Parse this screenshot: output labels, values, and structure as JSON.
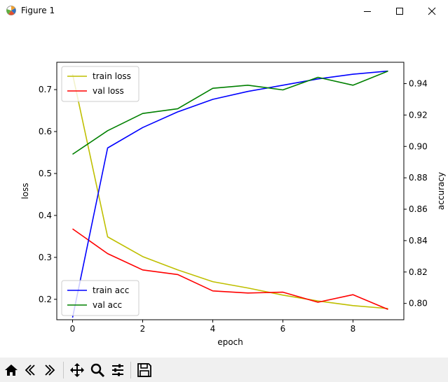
{
  "window": {
    "title": "Figure 1",
    "buttons": [
      "minimize",
      "maximize",
      "close"
    ]
  },
  "toolbar": {
    "tools": [
      {
        "name": "home-icon",
        "tooltip": "Home"
      },
      {
        "name": "back-icon",
        "tooltip": "Back"
      },
      {
        "name": "forward-icon",
        "tooltip": "Forward"
      },
      {
        "name": "pan-icon",
        "tooltip": "Pan"
      },
      {
        "name": "zoom-icon",
        "tooltip": "Zoom"
      },
      {
        "name": "configure-subplots-icon",
        "tooltip": "Subplots"
      },
      {
        "name": "save-icon",
        "tooltip": "Save"
      }
    ]
  },
  "chart_data": {
    "type": "line",
    "xlabel": "epoch",
    "ylabel_left": "loss",
    "ylabel_right": "accuracy",
    "x": [
      0,
      1,
      2,
      3,
      4,
      5,
      6,
      7,
      8,
      9
    ],
    "xlim": [
      -0.45,
      9.45
    ],
    "xticks": [
      "0",
      "2",
      "4",
      "6",
      "8"
    ],
    "ylim_left": [
      0.1513,
      0.7652
    ],
    "yticks_left": [
      "0.2",
      "0.3",
      "0.4",
      "0.5",
      "0.6",
      "0.7"
    ],
    "ylim_right": [
      0.7896,
      0.9536
    ],
    "yticks_right": [
      "0.80",
      "0.82",
      "0.84",
      "0.86",
      "0.88",
      "0.90",
      "0.92",
      "0.94"
    ],
    "grid": false,
    "left_series": [
      {
        "name": "train loss",
        "color": "#bfbf00",
        "values": [
          0.737,
          0.349,
          0.302,
          0.27,
          0.242,
          0.227,
          0.21,
          0.196,
          0.185,
          0.178
        ]
      },
      {
        "name": "val loss",
        "color": "#ff0000",
        "values": [
          0.368,
          0.309,
          0.27,
          0.259,
          0.22,
          0.215,
          0.217,
          0.193,
          0.211,
          0.176
        ]
      }
    ],
    "right_series": [
      {
        "name": "train acc",
        "color": "#0000ff",
        "values": [
          0.791,
          0.899,
          0.912,
          0.922,
          0.93,
          0.935,
          0.939,
          0.943,
          0.946,
          0.948
        ]
      },
      {
        "name": "val acc",
        "color": "#008000",
        "values": [
          0.895,
          0.91,
          0.921,
          0.924,
          0.937,
          0.939,
          0.936,
          0.944,
          0.939,
          0.948
        ]
      }
    ],
    "legend_left": {
      "placement": "upper-left",
      "entries": [
        "train loss",
        "val loss"
      ]
    },
    "legend_right": {
      "placement": "lower-left",
      "entries": [
        "train acc",
        "val acc"
      ]
    }
  }
}
